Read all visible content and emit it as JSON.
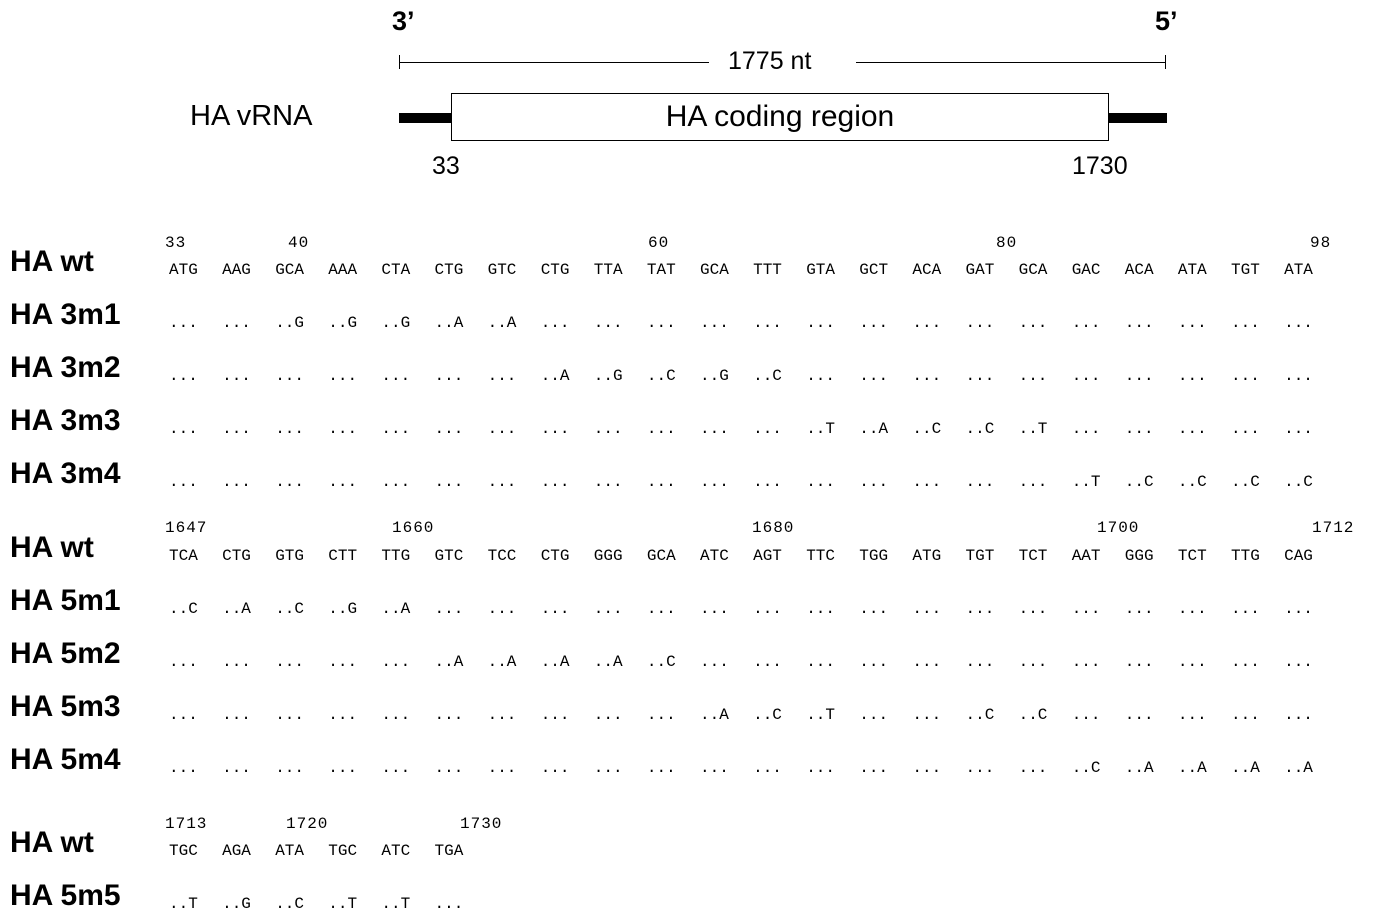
{
  "schematic": {
    "three_prime": "3’",
    "five_prime": "5’",
    "length": "1775 nt",
    "rna_name": "HA vRNA",
    "coding_region": "HA coding region",
    "start_pos": "33",
    "end_pos": "1730"
  },
  "blocks": [
    {
      "positions": [
        "33",
        "40",
        "60",
        "80",
        "98"
      ],
      "rows": [
        {
          "label": "HA wt",
          "codons": [
            "ATG",
            "AAG",
            "GCA",
            "AAA",
            "CTA",
            "CTG",
            "GTC",
            "CTG",
            "TTA",
            "TAT",
            "GCA",
            "TTT",
            "GTA",
            "GCT",
            "ACA",
            "GAT",
            "GCA",
            "GAC",
            "ACA",
            "ATA",
            "TGT",
            "ATA"
          ]
        },
        {
          "label": "HA 3m1",
          "codons": [
            "...",
            "...",
            "..G",
            "..G",
            "..G",
            "..A",
            "..A",
            "...",
            "...",
            "...",
            "...",
            "...",
            "...",
            "...",
            "...",
            "...",
            "...",
            "...",
            "...",
            "...",
            "...",
            "..."
          ]
        },
        {
          "label": "HA 3m2",
          "codons": [
            "...",
            "...",
            "...",
            "...",
            "...",
            "...",
            "...",
            "..A",
            "..G",
            "..C",
            "..G",
            "..C",
            "...",
            "...",
            "...",
            "...",
            "...",
            "...",
            "...",
            "...",
            "...",
            "..."
          ]
        },
        {
          "label": "HA 3m3",
          "codons": [
            "...",
            "...",
            "...",
            "...",
            "...",
            "...",
            "...",
            "...",
            "...",
            "...",
            "...",
            "...",
            "..T",
            "..A",
            "..C",
            "..C",
            "..T",
            "...",
            "...",
            "...",
            "...",
            "..."
          ]
        },
        {
          "label": "HA 3m4",
          "codons": [
            "...",
            "...",
            "...",
            "...",
            "...",
            "...",
            "...",
            "...",
            "...",
            "...",
            "...",
            "...",
            "...",
            "...",
            "...",
            "...",
            "...",
            "..T",
            "..C",
            "..C",
            "..C",
            "..C"
          ]
        }
      ]
    },
    {
      "positions": [
        "1647",
        "1660",
        "1680",
        "1700",
        "1712"
      ],
      "rows": [
        {
          "label": "HA wt",
          "codons": [
            "TCA",
            "CTG",
            "GTG",
            "CTT",
            "TTG",
            "GTC",
            "TCC",
            "CTG",
            "GGG",
            "GCA",
            "ATC",
            "AGT",
            "TTC",
            "TGG",
            "ATG",
            "TGT",
            "TCT",
            "AAT",
            "GGG",
            "TCT",
            "TTG",
            "CAG"
          ]
        },
        {
          "label": "HA 5m1",
          "codons": [
            "..C",
            "..A",
            "..C",
            "..G",
            "..A",
            "...",
            "...",
            "...",
            "...",
            "...",
            "...",
            "...",
            "...",
            "...",
            "...",
            "...",
            "...",
            "...",
            "...",
            "...",
            "...",
            "..."
          ]
        },
        {
          "label": "HA 5m2",
          "codons": [
            "...",
            "...",
            "...",
            "...",
            "...",
            "..A",
            "..A",
            "..A",
            "..A",
            "..C",
            "...",
            "...",
            "...",
            "...",
            "...",
            "...",
            "...",
            "...",
            "...",
            "...",
            "...",
            "..."
          ]
        },
        {
          "label": "HA 5m3",
          "codons": [
            "...",
            "...",
            "...",
            "...",
            "...",
            "...",
            "...",
            "...",
            "...",
            "...",
            "..A",
            "..C",
            "..T",
            "...",
            "...",
            "..C",
            "..C",
            "...",
            "...",
            "...",
            "...",
            "..."
          ]
        },
        {
          "label": "HA 5m4",
          "codons": [
            "...",
            "...",
            "...",
            "...",
            "...",
            "...",
            "...",
            "...",
            "...",
            "...",
            "...",
            "...",
            "...",
            "...",
            "...",
            "...",
            "...",
            "..C",
            "..A",
            "..A",
            "..A",
            "..A"
          ]
        }
      ]
    },
    {
      "positions": [
        "1713",
        "1720",
        "1730"
      ],
      "rows": [
        {
          "label": "HA wt",
          "codons": [
            "TGC",
            "AGA",
            "ATA",
            "TGC",
            "ATC",
            "TGA"
          ]
        },
        {
          "label": "HA 5m5",
          "codons": [
            "..T",
            "..G",
            "..C",
            "..T",
            "..T",
            "..."
          ]
        }
      ]
    }
  ]
}
